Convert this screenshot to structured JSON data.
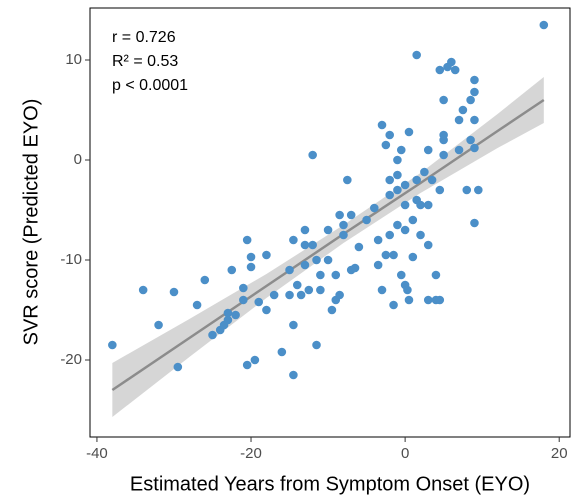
{
  "chart_data": {
    "type": "scatter",
    "x_label": "Estimated Years from Symptom Onset (EYO)",
    "y_label": "SVR score (Predicted EYO)",
    "annotations": [
      "r = 0.726",
      "R² = 0.53",
      "p < 0.0001"
    ],
    "xlim": [
      -40.9,
      21.4
    ],
    "ylim": [
      -27.7,
      15.2
    ],
    "xticks": [
      -40,
      -20,
      0,
      20
    ],
    "yticks": [
      -20,
      -10,
      0,
      10
    ],
    "color": "#4b8fc8",
    "fit_color": "#8c8c8c",
    "band_color": "#c8c8c8",
    "x": [
      -38,
      -34,
      -32,
      -30,
      -29.5,
      -27,
      -26,
      -25,
      -24,
      -23.5,
      -23,
      -23,
      -22.5,
      -22,
      -21,
      -21,
      -20.5,
      -20.5,
      -20,
      -20,
      -19.5,
      -19,
      -18,
      -18,
      -17,
      -16,
      -15,
      -15,
      -14.5,
      -14.5,
      -14.5,
      -14,
      -13.5,
      -13,
      -13,
      -13,
      -12.5,
      -12,
      -11.5,
      -11,
      -11,
      -12,
      -11.5,
      -10,
      -10,
      -9.5,
      -9,
      -9,
      -8.5,
      -8.5,
      -8,
      -8,
      -7.5,
      -7,
      -7,
      -6.5,
      -6,
      -5,
      -4,
      -3.5,
      -3.5,
      -3,
      -2.5,
      -2,
      -2,
      -1.5,
      -1.5,
      -1,
      -1,
      -1,
      -1,
      -0.5,
      -0.5,
      0,
      0,
      0,
      0,
      0.3,
      0.5,
      1,
      1,
      1.5,
      1.5,
      2,
      2,
      2.5,
      1.5,
      3,
      3,
      3,
      3,
      3.5,
      4,
      4,
      4.5,
      4.5,
      5,
      5,
      5,
      4.5,
      5,
      5.5,
      6,
      6.5,
      7,
      7,
      7.5,
      8,
      8.5,
      8.5,
      9,
      9,
      9,
      9,
      9,
      9.5,
      18,
      -3,
      -2.5,
      -2,
      -2,
      0.5
    ],
    "y": [
      -18.5,
      -13,
      -16.5,
      -13.2,
      -20.7,
      -14.5,
      -12,
      -17.5,
      -17,
      -16.5,
      -15.3,
      -16,
      -11,
      -15.5,
      -12.8,
      -14,
      -20.5,
      -8,
      -9.7,
      -10.7,
      -20,
      -14.2,
      -9.5,
      -15,
      -13.5,
      -19.2,
      -11,
      -13.5,
      -8,
      -16.5,
      -21.5,
      -12.5,
      -13.5,
      -10.5,
      -7,
      -8.5,
      -13,
      -8.5,
      -10,
      -11.5,
      -13,
      0.5,
      -18.5,
      -7,
      -10,
      -15,
      -11.5,
      -14,
      -5.5,
      -13.5,
      -7.5,
      -6.5,
      -2,
      -11,
      -5.5,
      -10.8,
      -8.7,
      -6,
      -4.8,
      -10.5,
      -8,
      -13,
      -9.5,
      -7.5,
      -2,
      -14.5,
      -9.5,
      -1.5,
      -6.5,
      -3,
      0,
      1,
      -11.5,
      -12.5,
      -7,
      -4.5,
      -2.5,
      -13,
      -14,
      -9.7,
      -6,
      -4,
      -2,
      -7.5,
      -4.5,
      -1.2,
      10.5,
      -14,
      -8.5,
      -4.5,
      1,
      -2,
      -11.5,
      -14,
      -3,
      -14,
      0.5,
      2,
      2.5,
      9,
      6,
      9.3,
      9.8,
      9,
      1,
      4,
      5,
      -3,
      6,
      2,
      8,
      6.8,
      4,
      1.2,
      -6.3,
      -3,
      13.5,
      3.5,
      1.5,
      2.5,
      -3.5,
      2.8
    ],
    "fit": {
      "x": [
        -38,
        -28,
        -18,
        -8,
        2,
        12,
        18
      ],
      "y": [
        -23,
        -17.8,
        -12.6,
        -7.4,
        -2.3,
        2.9,
        6
      ],
      "lower": [
        -25.7,
        -19.7,
        -13.8,
        -8.3,
        -3.3,
        1.2,
        3.7
      ],
      "upper": [
        -20.3,
        -15.9,
        -11.4,
        -6.5,
        -1.3,
        4.6,
        8.3
      ]
    }
  }
}
